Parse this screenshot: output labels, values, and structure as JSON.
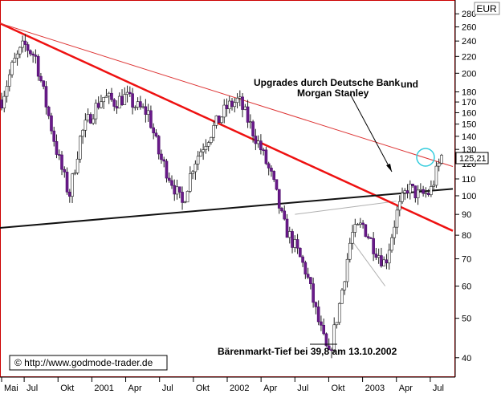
{
  "chart_data": {
    "type": "candlestick",
    "currency": "EUR",
    "x_tick_labels": [
      "Mai",
      "Jul",
      "Okt",
      "2001",
      "Apr",
      "Jul",
      "Okt",
      "2002",
      "Apr",
      "Jul",
      "Okt",
      "2003",
      "Apr",
      "Jul"
    ],
    "y_tick_labels": [
      "280",
      "260",
      "240",
      "220",
      "200",
      "180",
      "170",
      "160",
      "150",
      "140",
      "130",
      "120",
      "110",
      "100",
      "90",
      "80",
      "70",
      "60",
      "50",
      "40"
    ],
    "y_scale": "log",
    "ylim": [
      36,
      300
    ],
    "x_range": [
      "2000-05",
      "2003-09"
    ],
    "last_price_label": "125,21",
    "annotations": {
      "upgrades_line1": "Upgrades durch Deutsche Bank",
      "upgrades_und": "und",
      "upgrades_line2": "Morgan Stanley",
      "bear_low": "Bärenmarkt-Tief bei 39,8 am 13.10.2002"
    },
    "price_series": [
      [
        "2000-05",
        172
      ],
      [
        "2000-06",
        210
      ],
      [
        "2000-07",
        235
      ],
      [
        "2000-08",
        220
      ],
      [
        "2000-09",
        165
      ],
      [
        "2000-10",
        125
      ],
      [
        "2000-11",
        100
      ],
      [
        "2000-12",
        140
      ],
      [
        "2001-01",
        160
      ],
      [
        "2001-02",
        175
      ],
      [
        "2001-03",
        170
      ],
      [
        "2001-04",
        175
      ],
      [
        "2001-05",
        165
      ],
      [
        "2001-06",
        160
      ],
      [
        "2001-07",
        125
      ],
      [
        "2001-08",
        110
      ],
      [
        "2001-09",
        95
      ],
      [
        "2001-10",
        120
      ],
      [
        "2001-11",
        135
      ],
      [
        "2001-12",
        150
      ],
      [
        "2002-01",
        165
      ],
      [
        "2002-02",
        172
      ],
      [
        "2002-03",
        150
      ],
      [
        "2002-04",
        130
      ],
      [
        "2002-05",
        110
      ],
      [
        "2002-06",
        85
      ],
      [
        "2002-07",
        75
      ],
      [
        "2002-08",
        65
      ],
      [
        "2002-09",
        50
      ],
      [
        "2002-10",
        40
      ],
      [
        "2002-11",
        55
      ],
      [
        "2002-12",
        80
      ],
      [
        "2003-01",
        85
      ],
      [
        "2003-02",
        75
      ],
      [
        "2003-03",
        68
      ],
      [
        "2003-04",
        90
      ],
      [
        "2003-05",
        105
      ],
      [
        "2003-06",
        100
      ],
      [
        "2003-07",
        102
      ],
      [
        "2003-08",
        125
      ]
    ],
    "trendlines": [
      {
        "color": "#ee1111",
        "width": 2.5,
        "from": [
          "2000-04",
          272
        ],
        "to": [
          "2003-09",
          82
        ]
      },
      {
        "color": "#dd3333",
        "width": 1,
        "from": [
          "2000-04",
          270
        ],
        "to": [
          "2003-09",
          118
        ]
      },
      {
        "color": "#111111",
        "width": 2,
        "from": [
          "2000-04",
          83
        ],
        "to": [
          "2003-09",
          104
        ]
      }
    ],
    "shaded_channel": {
      "upper": [
        [
          "2002-07",
          90
        ],
        [
          "2003-04",
          97
        ]
      ],
      "lower": [
        [
          "2002-12",
          78
        ],
        [
          "2003-03",
          60
        ]
      ]
    }
  },
  "footer": {
    "copyright": "©  http://www.godmode-trader.de"
  }
}
